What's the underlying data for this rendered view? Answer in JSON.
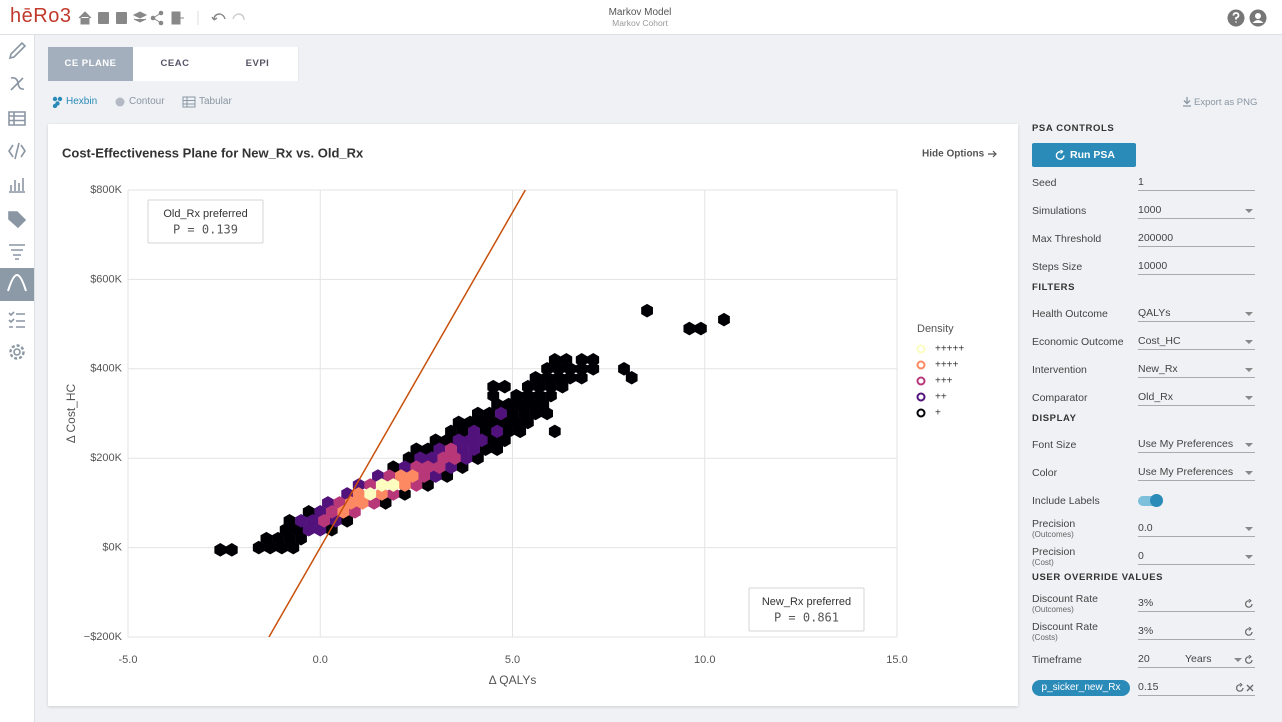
{
  "header": {
    "logo": "hēRo3",
    "title": "Markov Model",
    "subtitle": "Markov Cohort"
  },
  "tabs": {
    "items": [
      "CE PLANE",
      "CEAC",
      "EVPI"
    ],
    "active": 0
  },
  "view_options": {
    "items": [
      "Hexbin",
      "Contour",
      "Tabular"
    ],
    "active": 0,
    "export": "Export as PNG"
  },
  "chart_data": {
    "type": "hexbin",
    "title": "Cost-Effectiveness Plane for New_Rx vs. Old_Rx",
    "options_link": "Hide Options",
    "x_label": "Δ QALYs",
    "y_label": "Δ Cost_HC",
    "xlim": [
      -5,
      15
    ],
    "xticks": [
      {
        "value": -5,
        "label": "-5.0"
      },
      {
        "value": 0,
        "label": "0.0"
      },
      {
        "value": 5,
        "label": "5.0"
      },
      {
        "value": 10,
        "label": "10.0"
      },
      {
        "value": 15,
        "label": "15.0"
      }
    ],
    "ylim": [
      -200000,
      800000
    ],
    "yticks": [
      {
        "value": -200000,
        "label": "−$200K"
      },
      {
        "value": 0,
        "label": "$0K"
      },
      {
        "value": 200000,
        "label": "$200K"
      },
      {
        "value": 400000,
        "label": "$400K"
      },
      {
        "value": 600000,
        "label": "$600K"
      },
      {
        "value": 800000,
        "label": "$800K"
      }
    ],
    "grid": true,
    "threshold_line": {
      "slope": 150000,
      "color": "#c8500a"
    },
    "legend_title": "Density",
    "annotations": [
      {
        "title": "Old_Rx preferred",
        "text": "P = 0.139"
      },
      {
        "title": "New_Rx preferred",
        "text": "P = 0.861"
      }
    ],
    "series": [
      {
        "name": "+++++",
        "color": "#fcfdbf",
        "x": [
          1.3,
          1.6,
          1.9
        ],
        "values": [
          120000,
          140000,
          140000
        ]
      },
      {
        "name": "++++",
        "color": "#fc8961",
        "x": [
          0.6,
          0.8,
          1.1,
          1.0,
          1.6,
          2.2,
          2.1,
          2.4
        ],
        "values": [
          80000,
          100000,
          100000,
          120000,
          120000,
          140000,
          160000,
          160000
        ]
      },
      {
        "name": "+++",
        "color": "#b73779",
        "x": [
          0.1,
          0.3,
          0.9,
          0.5,
          1.4,
          1.9,
          1.3,
          2.5,
          1.8,
          2.7,
          2.5,
          2.8,
          3.1,
          3.2,
          3.5,
          3.4
        ],
        "values": [
          60000,
          80000,
          80000,
          100000,
          100000,
          120000,
          140000,
          140000,
          160000,
          160000,
          180000,
          180000,
          180000,
          200000,
          200000,
          220000
        ]
      },
      {
        "name": "++",
        "color": "#51127c",
        "x": [
          -0.3,
          0.0,
          -0.5,
          -0.2,
          0.4,
          0.0,
          0.2,
          0.7,
          1.0,
          1.5,
          3.0,
          2.2,
          3.4,
          2.6,
          2.9,
          3.8,
          3.1,
          3.7,
          4.0,
          3.6,
          3.9,
          4.2,
          4.0,
          4.6,
          4.7
        ],
        "values": [
          40000,
          40000,
          60000,
          60000,
          60000,
          80000,
          100000,
          120000,
          140000,
          160000,
          160000,
          180000,
          180000,
          200000,
          200000,
          200000,
          220000,
          220000,
          220000,
          240000,
          240000,
          240000,
          260000,
          260000,
          300000
        ]
      },
      {
        "name": "+",
        "color": "#000004",
        "x": [
          -2.6,
          -2.3,
          -1.6,
          -1.3,
          -1.0,
          -0.7,
          -1.4,
          -1.1,
          -0.8,
          -0.5,
          -0.9,
          -0.6,
          0.3,
          -0.8,
          0.7,
          -0.3,
          1.7,
          2.2,
          2.8,
          3.3,
          1.9,
          3.7,
          2.3,
          4.1,
          2.5,
          2.8,
          4.3,
          4.6,
          3.0,
          3.3,
          4.5,
          4.8,
          3.4,
          3.7,
          4.3,
          4.9,
          5.2,
          6.1,
          3.6,
          3.9,
          4.2,
          4.5,
          4.8,
          5.1,
          5.4,
          4.1,
          4.4,
          5.0,
          5.3,
          5.6,
          5.9,
          4.6,
          4.9,
          5.2,
          5.5,
          5.8,
          4.5,
          5.1,
          5.4,
          5.7,
          6.0,
          4.5,
          4.8,
          5.4,
          5.7,
          6.0,
          6.3,
          5.6,
          5.9,
          6.2,
          6.5,
          6.8,
          8.1,
          5.9,
          6.2,
          6.5,
          6.8,
          7.1,
          7.9,
          6.1,
          6.4,
          6.8,
          7.1,
          8.5,
          9.6,
          9.9,
          10.5
        ],
        "values": [
          -5000,
          -5000,
          0,
          0,
          0,
          0,
          20000,
          20000,
          20000,
          20000,
          40000,
          40000,
          40000,
          60000,
          60000,
          80000,
          100000,
          120000,
          140000,
          160000,
          180000,
          180000,
          200000,
          200000,
          220000,
          220000,
          220000,
          220000,
          240000,
          240000,
          240000,
          240000,
          260000,
          260000,
          260000,
          260000,
          260000,
          260000,
          280000,
          280000,
          280000,
          280000,
          280000,
          280000,
          280000,
          300000,
          300000,
          300000,
          300000,
          300000,
          300000,
          320000,
          320000,
          320000,
          320000,
          320000,
          340000,
          340000,
          340000,
          340000,
          340000,
          360000,
          360000,
          360000,
          360000,
          360000,
          360000,
          380000,
          380000,
          380000,
          380000,
          380000,
          380000,
          400000,
          400000,
          400000,
          400000,
          400000,
          400000,
          420000,
          420000,
          420000,
          420000,
          530000,
          490000,
          490000,
          510000
        ]
      }
    ]
  },
  "panel": {
    "sections": [
      {
        "title": "PSA CONTROLS",
        "button": "Run PSA",
        "fields": [
          {
            "label": "Seed",
            "value": "1"
          },
          {
            "label": "Simulations",
            "value": "1000",
            "dropdown": true
          },
          {
            "label": "Max Threshold",
            "value": "200000"
          },
          {
            "label": "Steps Size",
            "value": "10000"
          }
        ]
      },
      {
        "title": "FILTERS",
        "fields": [
          {
            "label": "Health Outcome",
            "value": "QALYs",
            "dropdown": true
          },
          {
            "label": "Economic Outcome",
            "value": "Cost_HC",
            "dropdown": true
          },
          {
            "label": "Intervention",
            "value": "New_Rx",
            "dropdown": true
          },
          {
            "label": "Comparator",
            "value": "Old_Rx",
            "dropdown": true
          }
        ]
      },
      {
        "title": "DISPLAY",
        "fields": [
          {
            "label": "Font Size",
            "value": "Use My Preferences",
            "dropdown": true
          },
          {
            "label": "Color",
            "value": "Use My Preferences",
            "dropdown": true
          },
          {
            "label": "Include Labels",
            "toggle": true
          },
          {
            "label": "Precision",
            "sublabel": "(Outcomes)",
            "value": "0.0",
            "dropdown": true
          },
          {
            "label": "Precision",
            "sublabel": "(Cost)",
            "value": "0",
            "dropdown": true
          }
        ]
      },
      {
        "title": "USER OVERRIDE VALUES",
        "fields": [
          {
            "label": "Discount Rate",
            "sublabel": "(Outcomes)",
            "value": "3%",
            "reset": true
          },
          {
            "label": "Discount Rate",
            "sublabel": "(Costs)",
            "value": "3%",
            "reset": true
          },
          {
            "label": "Timeframe",
            "value": "20",
            "unit": "Years",
            "dropdown": true,
            "reset": true
          },
          {
            "chip": "p_sicker_new_Rx",
            "value": "0.15",
            "reset": true,
            "clear": true
          }
        ]
      }
    ]
  }
}
